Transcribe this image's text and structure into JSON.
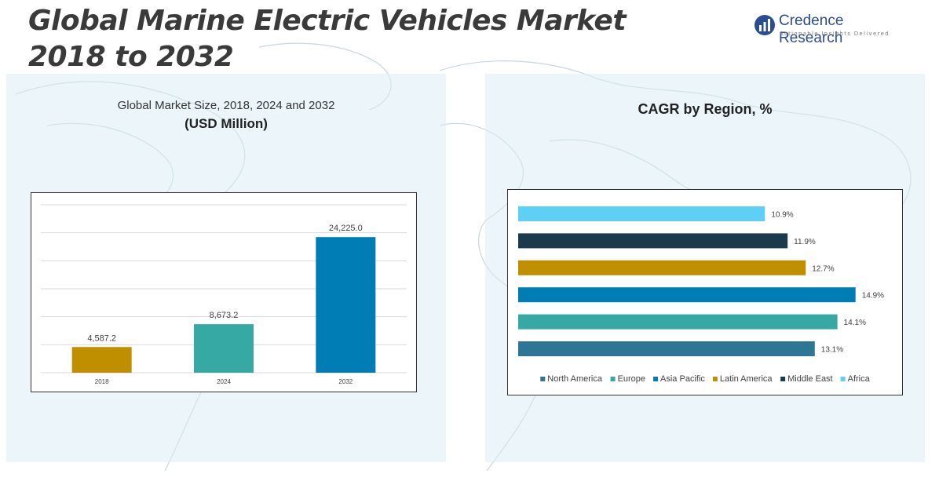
{
  "header": {
    "title_line1": "Global Marine Electric Vehicles Market",
    "title_line2": "2018 to 2032"
  },
  "brand": {
    "name": "Credence Research",
    "tagline": "Actionable Insights Delivered"
  },
  "left_panel": {
    "subtitle": "Global Market Size, 2018, 2024 and 2032",
    "unit": "(USD Million)"
  },
  "right_panel": {
    "title": "CAGR by Region, %"
  },
  "colors": {
    "panel_bg": "#dbecf6",
    "map_lines": "#c8d6de",
    "gold": "#bf8f00",
    "teal": "#36a9a4",
    "blue": "#007db4",
    "dark": "#1b3a4b",
    "sky": "#5ed0f5",
    "steel": "#2e7696",
    "brand_blue": "#2a4d8f"
  },
  "chart_data": [
    {
      "type": "bar",
      "categories": [
        "2018",
        "2024",
        "2032"
      ],
      "values": [
        4587.2,
        8673.2,
        24225.0
      ],
      "value_labels": [
        "4,587.2",
        "8,673.2",
        "24,225.0"
      ],
      "colors": [
        "#bf8f00",
        "#36a9a4",
        "#007db4"
      ],
      "ylim": [
        0,
        30000
      ],
      "grid": true
    },
    {
      "type": "bar",
      "orientation": "horizontal",
      "categories": [
        "Africa",
        "Middle East",
        "Latin America",
        "Asia Pacific",
        "Europe",
        "North America"
      ],
      "values": [
        10.9,
        11.9,
        12.7,
        14.9,
        14.1,
        13.1
      ],
      "value_labels": [
        "10.9%",
        "11.9%",
        "12.7%",
        "14.9%",
        "14.1%",
        "13.1%"
      ],
      "colors": [
        "#5ed0f5",
        "#1b3a4b",
        "#bf8f00",
        "#007db4",
        "#36a9a4",
        "#2e7696"
      ],
      "xlim": [
        0,
        15.5
      ],
      "legend": {
        "placement": "bottom",
        "entries": [
          "North America",
          "Europe",
          "Asia Pacific",
          "Latin America",
          "Middle East",
          "Africa"
        ],
        "colors": [
          "#2e7696",
          "#36a9a4",
          "#007db4",
          "#bf8f00",
          "#1b3a4b",
          "#5ed0f5"
        ]
      }
    }
  ]
}
